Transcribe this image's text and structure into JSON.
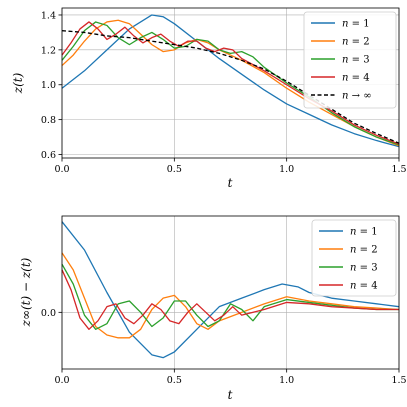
{
  "chart_data": [
    {
      "type": "line",
      "xlabel": "t",
      "ylabel": "z(t)",
      "xlim": [
        0.0,
        1.5
      ],
      "ylim": [
        0.58,
        1.44
      ],
      "xticks": [
        "0.0",
        "0.5",
        "1.0",
        "1.5"
      ],
      "xtick_values": [
        0.0,
        0.5,
        1.0,
        1.5
      ],
      "yticks": [
        "0.6",
        "0.8",
        "1.0",
        "1.2",
        "1.4"
      ],
      "ytick_values": [
        0.6,
        0.8,
        1.0,
        1.2,
        1.4
      ],
      "grid": true,
      "legend_position": "top-right",
      "series": [
        {
          "name": "n = 1",
          "color": "#1f77b4",
          "dash": "solid",
          "x": [
            0.0,
            0.1,
            0.2,
            0.3,
            0.4,
            0.45,
            0.5,
            0.6,
            0.7,
            0.8,
            0.9,
            1.0,
            1.1,
            1.2,
            1.3,
            1.4,
            1.5
          ],
          "y": [
            0.98,
            1.08,
            1.2,
            1.32,
            1.4,
            1.39,
            1.35,
            1.25,
            1.15,
            1.06,
            0.97,
            0.89,
            0.83,
            0.77,
            0.72,
            0.68,
            0.645
          ]
        },
        {
          "name": "n = 2",
          "color": "#ff7f0e",
          "dash": "solid",
          "x": [
            0.0,
            0.05,
            0.1,
            0.15,
            0.2,
            0.25,
            0.3,
            0.35,
            0.4,
            0.45,
            0.5,
            0.55,
            0.6,
            0.65,
            0.7,
            0.75,
            0.8,
            0.9,
            1.0,
            1.1,
            1.2,
            1.3,
            1.4,
            1.5
          ],
          "y": [
            1.11,
            1.17,
            1.25,
            1.32,
            1.36,
            1.37,
            1.35,
            1.29,
            1.23,
            1.19,
            1.2,
            1.24,
            1.26,
            1.24,
            1.2,
            1.17,
            1.14,
            1.07,
            0.98,
            0.9,
            0.83,
            0.76,
            0.7,
            0.65
          ]
        },
        {
          "name": "n = 3",
          "color": "#2ca02c",
          "dash": "solid",
          "x": [
            0.0,
            0.05,
            0.1,
            0.15,
            0.2,
            0.25,
            0.3,
            0.35,
            0.4,
            0.45,
            0.5,
            0.55,
            0.6,
            0.65,
            0.7,
            0.75,
            0.8,
            0.85,
            0.9,
            1.0,
            1.1,
            1.2,
            1.3,
            1.4,
            1.5
          ],
          "y": [
            1.14,
            1.22,
            1.31,
            1.36,
            1.34,
            1.27,
            1.23,
            1.27,
            1.3,
            1.26,
            1.21,
            1.22,
            1.26,
            1.25,
            1.2,
            1.18,
            1.19,
            1.16,
            1.1,
            1.01,
            0.93,
            0.84,
            0.76,
            0.7,
            0.655
          ]
        },
        {
          "name": "n = 4",
          "color": "#d62728",
          "dash": "solid",
          "x": [
            0.0,
            0.04,
            0.08,
            0.12,
            0.16,
            0.2,
            0.24,
            0.28,
            0.32,
            0.36,
            0.4,
            0.44,
            0.48,
            0.52,
            0.56,
            0.6,
            0.64,
            0.68,
            0.72,
            0.76,
            0.8,
            0.9,
            1.0,
            1.1,
            1.2,
            1.3,
            1.4,
            1.5
          ],
          "y": [
            1.17,
            1.24,
            1.32,
            1.36,
            1.32,
            1.26,
            1.29,
            1.33,
            1.28,
            1.24,
            1.27,
            1.29,
            1.25,
            1.22,
            1.25,
            1.25,
            1.21,
            1.19,
            1.21,
            1.2,
            1.15,
            1.08,
            1.0,
            0.92,
            0.85,
            0.77,
            0.71,
            0.66
          ]
        },
        {
          "name": "n → ∞",
          "color": "#000000",
          "dash": "dashed",
          "x": [
            0.0,
            0.1,
            0.2,
            0.3,
            0.4,
            0.5,
            0.6,
            0.7,
            0.8,
            0.9,
            1.0,
            1.1,
            1.2,
            1.3,
            1.4,
            1.5
          ],
          "y": [
            1.31,
            1.3,
            1.28,
            1.27,
            1.25,
            1.23,
            1.21,
            1.18,
            1.14,
            1.09,
            1.02,
            0.94,
            0.86,
            0.78,
            0.72,
            0.665
          ]
        }
      ],
      "legend_labels": [
        {
          "pre": "n",
          "op": " = ",
          "post": "1"
        },
        {
          "pre": "n",
          "op": " = ",
          "post": "2"
        },
        {
          "pre": "n",
          "op": " = ",
          "post": "3"
        },
        {
          "pre": "n",
          "op": " = ",
          "post": "4"
        },
        {
          "pre": "n",
          "op": " → ",
          "post": "∞"
        }
      ]
    },
    {
      "type": "line",
      "xlabel": "t",
      "ylabel": "z∞(t) − z(t)",
      "xlim": [
        0.0,
        1.5
      ],
      "ylim": [
        -0.2,
        0.34
      ],
      "xticks": [
        "0.0",
        "0.5",
        "1.0",
        "1.5"
      ],
      "xtick_values": [
        0.0,
        0.5,
        1.0,
        1.5
      ],
      "yticks": [
        "0.0"
      ],
      "ytick_values": [
        0.0
      ],
      "grid": true,
      "legend_position": "top-right",
      "series": [
        {
          "name": "n = 1",
          "color": "#1f77b4",
          "dash": "solid",
          "x": [
            0.0,
            0.1,
            0.2,
            0.3,
            0.4,
            0.45,
            0.5,
            0.6,
            0.7,
            0.8,
            0.9,
            0.98,
            1.05,
            1.1,
            1.2,
            1.3,
            1.4,
            1.5
          ],
          "y": [
            0.32,
            0.22,
            0.07,
            -0.07,
            -0.15,
            -0.16,
            -0.14,
            -0.06,
            0.02,
            0.05,
            0.08,
            0.1,
            0.09,
            0.07,
            0.05,
            0.04,
            0.03,
            0.02
          ]
        },
        {
          "name": "n = 2",
          "color": "#ff7f0e",
          "dash": "solid",
          "x": [
            0.0,
            0.05,
            0.1,
            0.15,
            0.2,
            0.25,
            0.3,
            0.35,
            0.4,
            0.45,
            0.5,
            0.55,
            0.6,
            0.65,
            0.7,
            0.8,
            0.9,
            1.0,
            1.1,
            1.2,
            1.3,
            1.4,
            1.5
          ],
          "y": [
            0.21,
            0.15,
            0.05,
            -0.05,
            -0.08,
            -0.09,
            -0.09,
            -0.06,
            0.01,
            0.05,
            0.06,
            0.02,
            -0.04,
            -0.06,
            -0.03,
            0.0,
            0.03,
            0.055,
            0.04,
            0.03,
            0.02,
            0.015,
            0.01
          ]
        },
        {
          "name": "n = 3",
          "color": "#2ca02c",
          "dash": "solid",
          "x": [
            0.0,
            0.05,
            0.1,
            0.15,
            0.2,
            0.25,
            0.3,
            0.35,
            0.4,
            0.45,
            0.5,
            0.55,
            0.6,
            0.65,
            0.7,
            0.75,
            0.8,
            0.85,
            0.9,
            1.0,
            1.1,
            1.2,
            1.3,
            1.4,
            1.5
          ],
          "y": [
            0.17,
            0.1,
            -0.01,
            -0.06,
            -0.04,
            0.03,
            0.04,
            0.0,
            -0.05,
            -0.02,
            0.04,
            0.04,
            -0.01,
            -0.05,
            -0.03,
            0.03,
            0.01,
            -0.03,
            0.02,
            0.045,
            0.035,
            0.025,
            0.015,
            0.01,
            0.01
          ]
        },
        {
          "name": "n = 4",
          "color": "#d62728",
          "dash": "solid",
          "x": [
            0.0,
            0.04,
            0.08,
            0.12,
            0.16,
            0.2,
            0.24,
            0.28,
            0.32,
            0.36,
            0.4,
            0.44,
            0.48,
            0.52,
            0.56,
            0.6,
            0.64,
            0.68,
            0.72,
            0.76,
            0.8,
            0.9,
            1.0,
            1.1,
            1.2,
            1.3,
            1.4,
            1.5
          ],
          "y": [
            0.15,
            0.08,
            -0.02,
            -0.06,
            -0.03,
            0.02,
            0.03,
            -0.02,
            -0.04,
            -0.01,
            0.03,
            0.01,
            -0.03,
            -0.04,
            0.0,
            0.03,
            0.0,
            -0.03,
            -0.01,
            0.02,
            -0.01,
            0.01,
            0.035,
            0.03,
            0.02,
            0.015,
            0.01,
            0.01
          ]
        }
      ],
      "legend_labels": [
        {
          "pre": "n",
          "op": " = ",
          "post": "1"
        },
        {
          "pre": "n",
          "op": " = ",
          "post": "2"
        },
        {
          "pre": "n",
          "op": " = ",
          "post": "3"
        },
        {
          "pre": "n",
          "op": " = ",
          "post": "4"
        }
      ]
    }
  ]
}
